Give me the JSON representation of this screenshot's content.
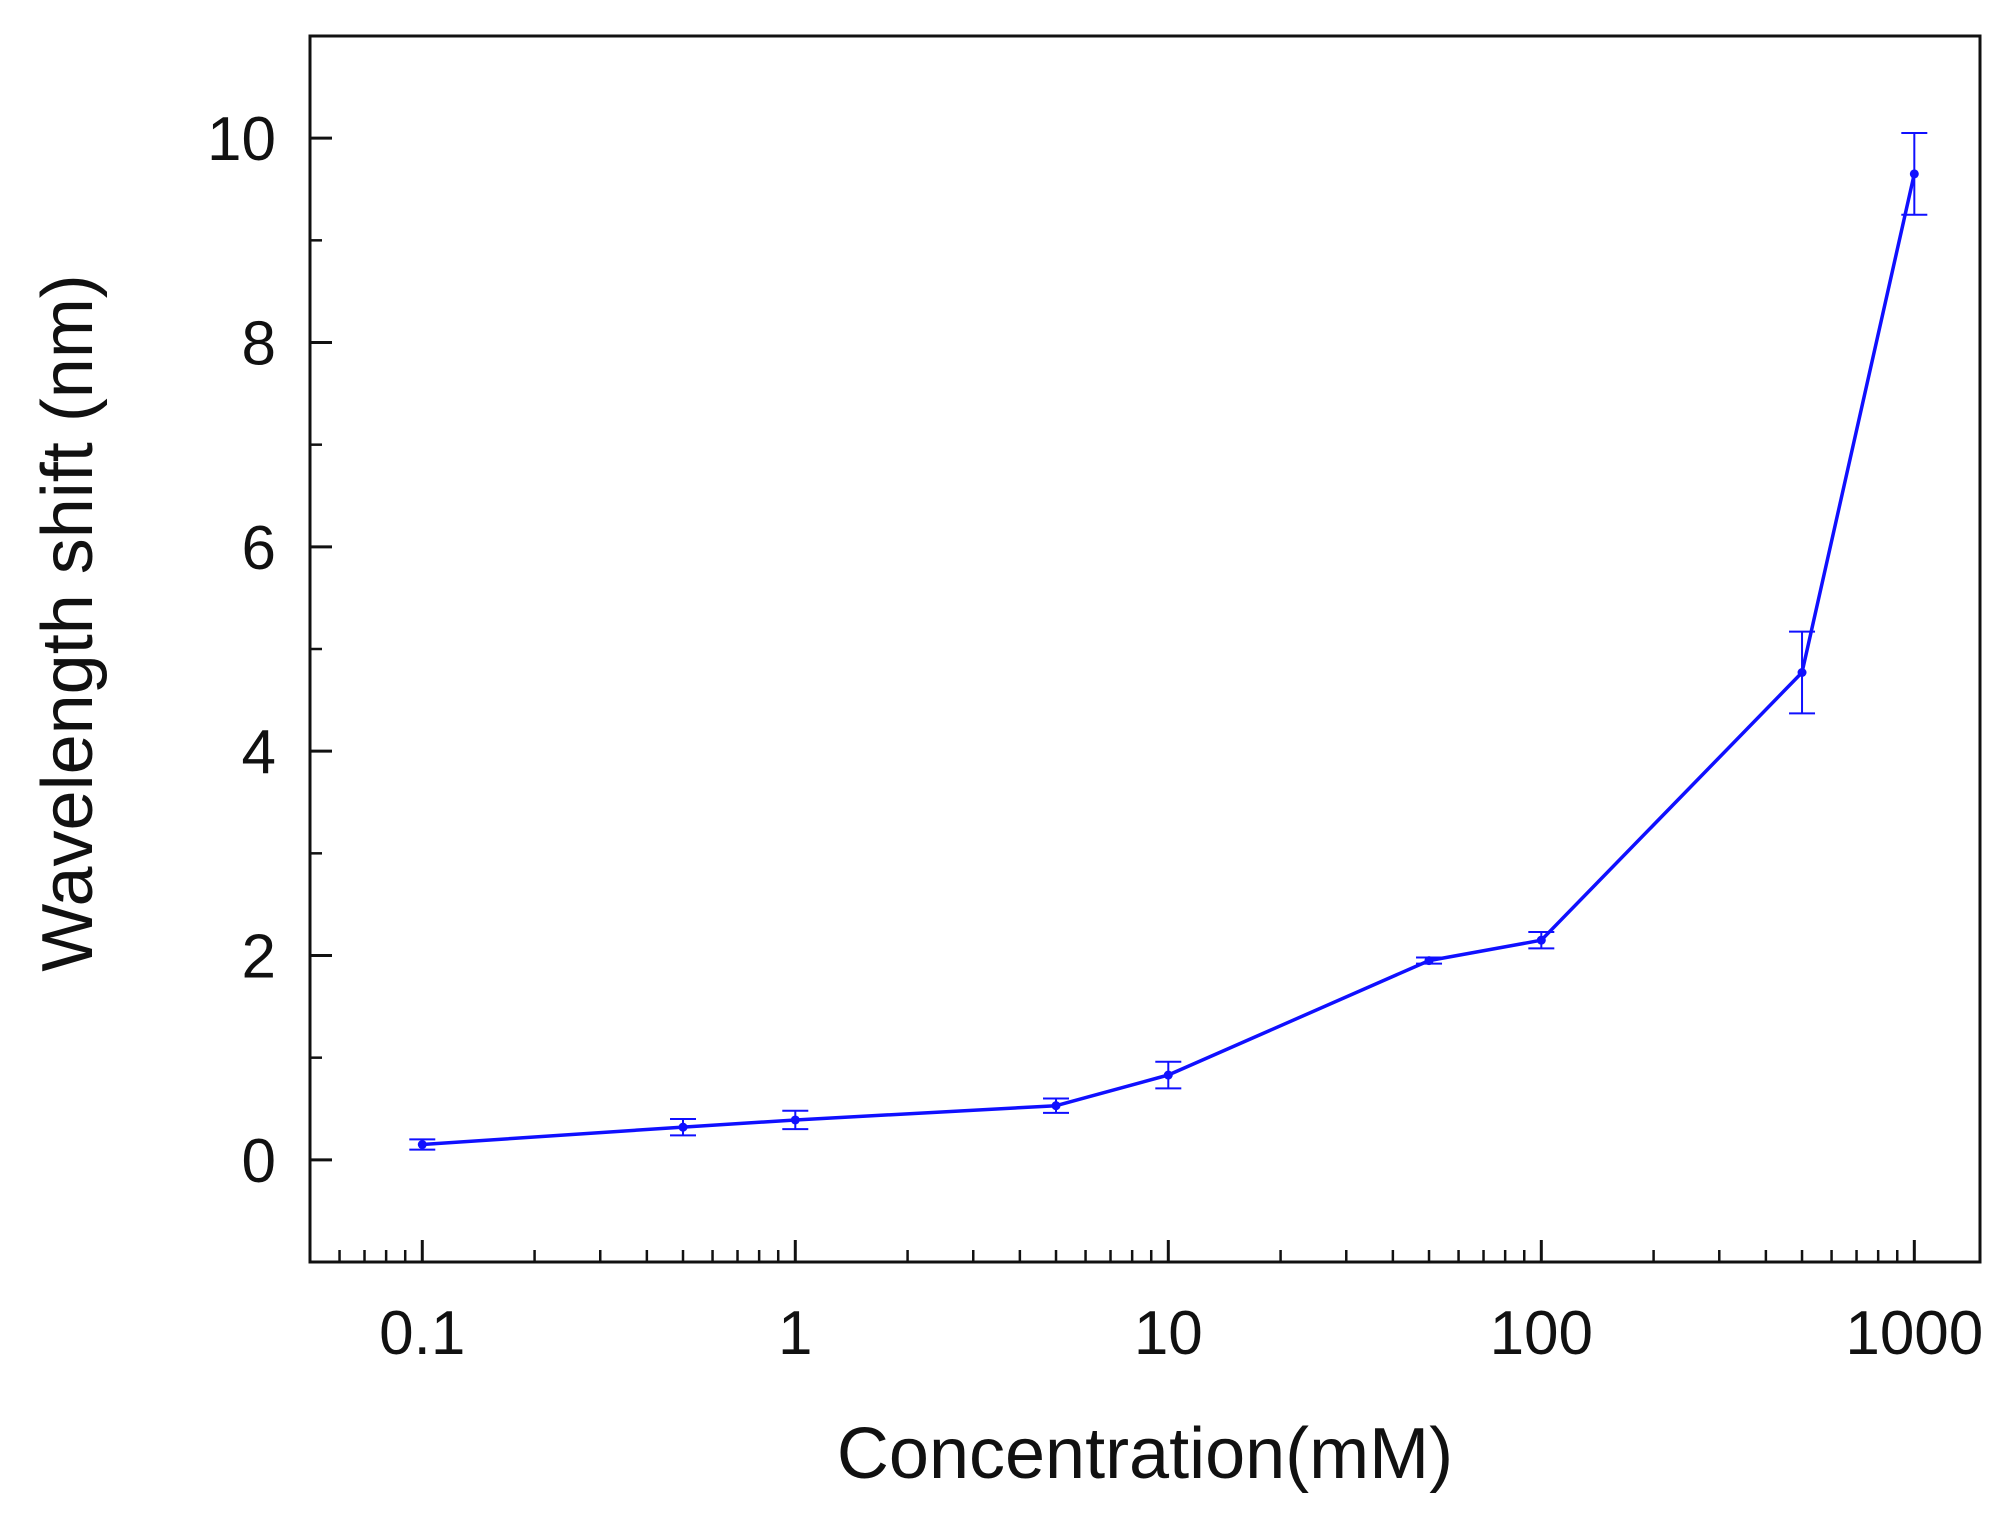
{
  "chart_data": {
    "type": "line",
    "title": "",
    "xlabel": "Concentration(mM)",
    "ylabel": "Wavelength shift (nm)",
    "x_scale": "log",
    "xlim": [
      0.05,
      1500
    ],
    "ylim": [
      -1,
      11
    ],
    "x_ticks": [
      0.1,
      1,
      10,
      100,
      1000
    ],
    "x_tick_labels": [
      "0.1",
      "1",
      "10",
      "100",
      "1000"
    ],
    "y_ticks": [
      0,
      2,
      4,
      6,
      8,
      10
    ],
    "y_tick_labels": [
      "0",
      "2",
      "4",
      "6",
      "8",
      "10"
    ],
    "grid": false,
    "legend": "none",
    "series": [
      {
        "color": "#1010ff",
        "x": [
          0.1,
          0.5,
          1,
          5,
          10,
          50,
          100,
          500,
          1000
        ],
        "y": [
          0.15,
          0.32,
          0.39,
          0.53,
          0.83,
          1.95,
          2.15,
          4.77,
          9.65
        ],
        "error": [
          0.05,
          0.08,
          0.09,
          0.07,
          0.13,
          0.03,
          0.08,
          0.4,
          0.4
        ]
      }
    ]
  }
}
